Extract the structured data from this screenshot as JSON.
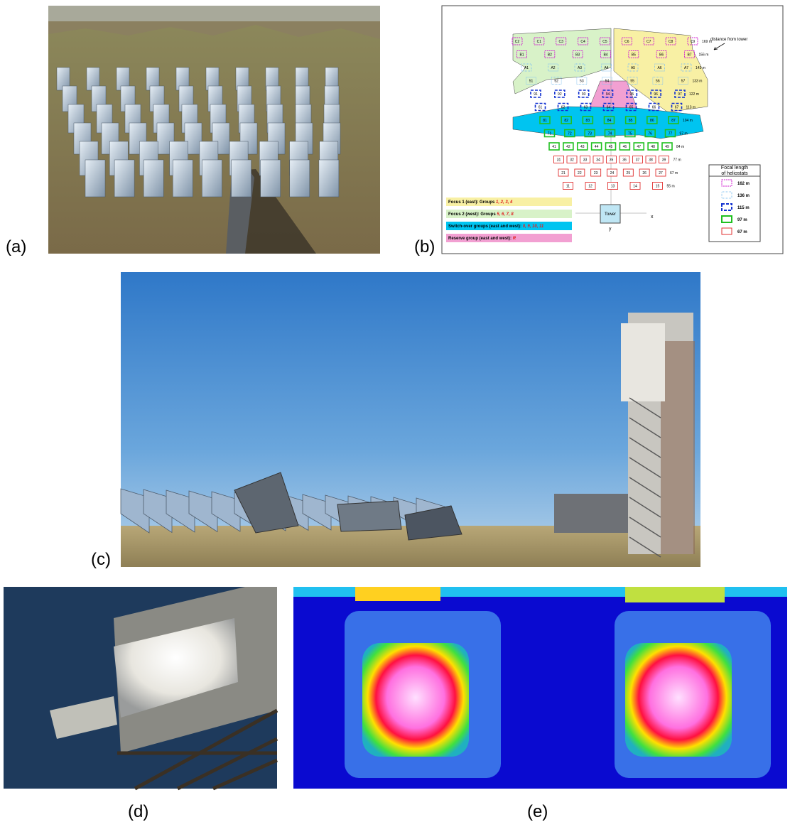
{
  "panel_labels": [
    "(a)",
    "(b)",
    "(c)",
    "(d)",
    "(e)"
  ],
  "diagram": {
    "distance_caption": "distance from tower",
    "rows": [
      {
        "labels": [
          "C2",
          "C1",
          "C3",
          "C4",
          "C5",
          "C6",
          "C7",
          "C8",
          "C9"
        ],
        "distance": "169 m"
      },
      {
        "labels": [
          "B1",
          "B2",
          "B3",
          "B4",
          "B5",
          "B6",
          "B7"
        ],
        "distance": "156 m"
      },
      {
        "labels": [
          "A1",
          "A2",
          "A3",
          "A4",
          "A5",
          "A6",
          "A7"
        ],
        "distance": "143 m"
      },
      {
        "labels": [
          "51",
          "52",
          "53",
          "54",
          "55",
          "56",
          "57"
        ],
        "distance": "133 m"
      },
      {
        "labels": [
          "91",
          "92",
          "93",
          "94",
          "95",
          "96",
          "97"
        ],
        "distance": "122 m"
      },
      {
        "labels": [
          "61",
          "62",
          "63",
          "64",
          "65",
          "66",
          "67"
        ],
        "distance": "113 m"
      },
      {
        "labels": [
          "81",
          "82",
          "83",
          "84",
          "85",
          "86",
          "87"
        ],
        "distance": "104 m"
      },
      {
        "labels": [
          "71",
          "72",
          "73",
          "74",
          "75",
          "76",
          "77"
        ],
        "distance": "97 m"
      },
      {
        "labels": [
          "41",
          "42",
          "43",
          "44",
          "45",
          "46",
          "47",
          "48",
          "49"
        ],
        "distance": "84 m"
      },
      {
        "labels": [
          "31",
          "32",
          "33",
          "34",
          "35",
          "36",
          "37",
          "38",
          "39"
        ],
        "distance": "77 m"
      },
      {
        "labels": [
          "21",
          "22",
          "23",
          "24",
          "25",
          "26",
          "27"
        ],
        "distance": "67 m"
      },
      {
        "labels": [
          "11",
          "12",
          "13",
          "14",
          "15"
        ],
        "distance": "55 m"
      }
    ],
    "tower": "Tower",
    "axis_x": "x",
    "axis_y": "y",
    "groups": [
      {
        "text": "Focus 1 (east): Groups ",
        "groups": "1, 2, 3, 4"
      },
      {
        "text": "Focus 2 (west): Groups ",
        "groups": "5, 6, 7, 8"
      },
      {
        "text": "Switch-over groups (east and west): ",
        "groups": "0, 9, 10, 11"
      },
      {
        "text": "Reserve group (east and west): ",
        "groups": "R"
      }
    ],
    "focal_legend": {
      "title": [
        "Focal length",
        "of heliostats"
      ],
      "items": [
        "162 m",
        "136 m",
        "115 m",
        "97 m",
        "67 m"
      ]
    }
  }
}
